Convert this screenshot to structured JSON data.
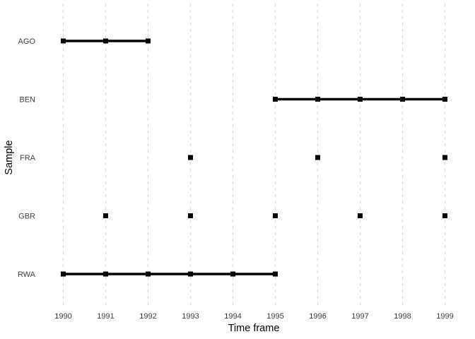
{
  "chart_data": {
    "type": "scatter",
    "title": "",
    "xlabel": "Time frame",
    "ylabel": "Sample",
    "categories": [
      "AGO",
      "BEN",
      "FRA",
      "GBR",
      "RWA"
    ],
    "x_ticks": [
      1990,
      1991,
      1992,
      1993,
      1994,
      1995,
      1996,
      1997,
      1998,
      1999
    ],
    "xlim": [
      1990,
      1999
    ],
    "series": [
      {
        "name": "AGO",
        "years": [
          1990,
          1991,
          1992
        ]
      },
      {
        "name": "BEN",
        "years": [
          1995,
          1996,
          1997,
          1998,
          1999
        ]
      },
      {
        "name": "FRA",
        "years": [
          1993,
          1996,
          1999
        ]
      },
      {
        "name": "GBR",
        "years": [
          1991,
          1993,
          1995,
          1997,
          1999
        ]
      },
      {
        "name": "RWA",
        "years": [
          1990,
          1991,
          1992,
          1993,
          1994,
          1995
        ]
      }
    ],
    "connect_consecutive_years": true,
    "marker": "square",
    "marker_size": 7,
    "line_width": 3.5,
    "grid": {
      "vertical": true,
      "horizontal": false,
      "style": "dashed"
    },
    "legend": "none",
    "colors": {
      "series": "#000000",
      "grid": "#D9D9D9",
      "tick_label": "#404040",
      "axis_title": "#000000",
      "background": "#FFFFFF"
    }
  }
}
